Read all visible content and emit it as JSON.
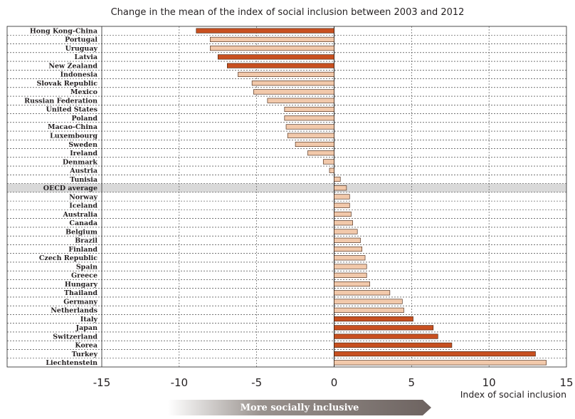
{
  "chart_data": {
    "type": "bar",
    "orientation": "horizontal",
    "title": "Change in the mean of the index of social inclusion between 2003 and 2012",
    "xlabel": "Index of social inclusion",
    "xlim": [
      -15,
      15
    ],
    "xticks": [
      "-15",
      "-10",
      "-5",
      "0",
      "5",
      "10",
      "15"
    ],
    "grid": "vertical dashed at 5-unit intervals",
    "highlighted_category": "OECD average",
    "colors": {
      "significant": "#c85020",
      "not_significant": "#f2c9ab",
      "bar_outline": "#3a1a08",
      "oecd_band": "#d9d9d9"
    },
    "categories": [
      "Hong Kong-China",
      "Portugal",
      "Uruguay",
      "Latvia",
      "New Zealand",
      "Indonesia",
      "Slovak Republic",
      "Mexico",
      "Russian Federation",
      "United States",
      "Poland",
      "Macao-China",
      "Luxembourg",
      "Sweden",
      "Ireland",
      "Denmark",
      "Austria",
      "Tunisia",
      "OECD average",
      "Norway",
      "Iceland",
      "Australia",
      "Canada",
      "Belgium",
      "Brazil",
      "Finland",
      "Czech Republic",
      "Spain",
      "Greece",
      "Hungary",
      "Thailand",
      "Germany",
      "Netherlands",
      "Italy",
      "Japan",
      "Switzerland",
      "Korea",
      "Turkey",
      "Liechtenstein"
    ],
    "values": [
      -8.9,
      -8.0,
      -8.0,
      -7.5,
      -6.9,
      -6.2,
      -5.3,
      -5.2,
      -4.3,
      -3.2,
      -3.2,
      -3.1,
      -3.0,
      -2.5,
      -1.7,
      -0.7,
      -0.3,
      0.4,
      0.8,
      1.0,
      1.0,
      1.1,
      1.2,
      1.5,
      1.7,
      1.8,
      2.0,
      2.1,
      2.1,
      2.3,
      3.6,
      4.4,
      4.5,
      5.1,
      6.4,
      6.7,
      7.6,
      13.0,
      13.7
    ],
    "significant": [
      true,
      false,
      false,
      true,
      true,
      false,
      false,
      false,
      false,
      false,
      false,
      false,
      false,
      false,
      false,
      false,
      false,
      false,
      false,
      false,
      false,
      false,
      false,
      false,
      false,
      false,
      false,
      false,
      false,
      false,
      false,
      false,
      false,
      true,
      true,
      true,
      true,
      true,
      false
    ]
  },
  "footer": {
    "arrow_label": "More socially inclusive"
  }
}
